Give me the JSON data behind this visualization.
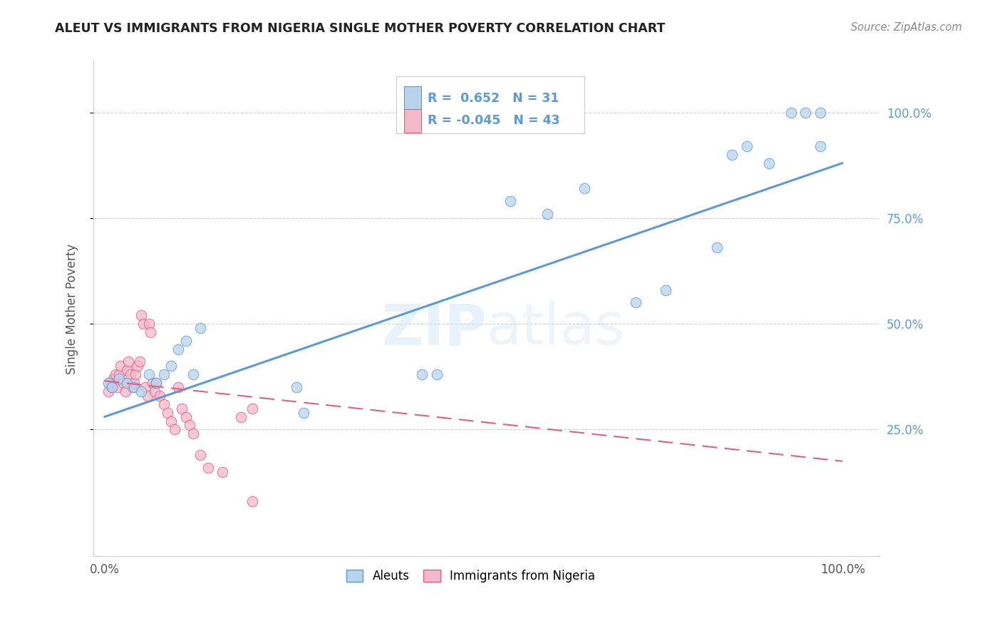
{
  "title": "ALEUT VS IMMIGRANTS FROM NIGERIA SINGLE MOTHER POVERTY CORRELATION CHART",
  "source": "Source: ZipAtlas.com",
  "ylabel": "Single Mother Poverty",
  "legend_label1": "Aleuts",
  "legend_label2": "Immigrants from Nigeria",
  "r1": 0.652,
  "n1": 31,
  "r2": -0.045,
  "n2": 43,
  "color_blue_fill": "#b8d4ed",
  "color_pink_fill": "#f5b8ca",
  "color_blue_edge": "#5b9bd5",
  "color_pink_edge": "#e06080",
  "color_blue_line": "#5b9bd5",
  "color_pink_line": "#e06080",
  "watermark": "ZIPatlas",
  "aleuts_x": [
    0.005,
    0.01,
    0.02,
    0.03,
    0.04,
    0.05,
    0.06,
    0.07,
    0.08,
    0.09,
    0.1,
    0.11,
    0.12,
    0.13,
    0.27,
    0.45,
    0.55,
    0.65,
    0.72,
    0.76,
    0.83,
    0.85,
    0.87,
    0.9,
    0.93,
    0.95,
    0.97,
    0.97,
    0.26,
    0.43,
    0.6
  ],
  "aleuts_y": [
    0.36,
    0.35,
    0.37,
    0.36,
    0.35,
    0.34,
    0.38,
    0.36,
    0.38,
    0.4,
    0.44,
    0.46,
    0.38,
    0.49,
    0.29,
    0.38,
    0.79,
    0.82,
    0.55,
    0.58,
    0.68,
    0.9,
    0.92,
    0.88,
    1.0,
    1.0,
    0.92,
    1.0,
    0.35,
    0.38,
    0.76
  ],
  "nigeria_x": [
    0.005,
    0.008,
    0.01,
    0.012,
    0.015,
    0.018,
    0.02,
    0.022,
    0.025,
    0.028,
    0.03,
    0.032,
    0.035,
    0.038,
    0.04,
    0.042,
    0.045,
    0.048,
    0.05,
    0.052,
    0.055,
    0.058,
    0.06,
    0.062,
    0.065,
    0.068,
    0.07,
    0.075,
    0.08,
    0.085,
    0.09,
    0.095,
    0.1,
    0.105,
    0.11,
    0.115,
    0.12,
    0.13,
    0.14,
    0.16,
    0.185,
    0.2,
    0.2
  ],
  "nigeria_y": [
    0.34,
    0.36,
    0.35,
    0.37,
    0.38,
    0.35,
    0.38,
    0.4,
    0.36,
    0.34,
    0.39,
    0.41,
    0.38,
    0.35,
    0.36,
    0.38,
    0.4,
    0.41,
    0.52,
    0.5,
    0.35,
    0.33,
    0.5,
    0.48,
    0.36,
    0.34,
    0.36,
    0.33,
    0.31,
    0.29,
    0.27,
    0.25,
    0.35,
    0.3,
    0.28,
    0.26,
    0.24,
    0.19,
    0.16,
    0.15,
    0.28,
    0.3,
    0.08
  ],
  "blue_line_x": [
    0.0,
    1.0
  ],
  "blue_line_y": [
    0.28,
    0.88
  ],
  "pink_line_x": [
    0.0,
    1.0
  ],
  "pink_line_y": [
    0.365,
    0.175
  ],
  "ytick_vals": [
    0.25,
    0.5,
    0.75,
    1.0
  ],
  "ytick_labels": [
    "25.0%",
    "50.0%",
    "75.0%",
    "100.0%"
  ],
  "background_color": "#ffffff",
  "grid_color": "#cccccc",
  "xlim": [
    -0.015,
    1.05
  ],
  "ylim": [
    -0.05,
    1.12
  ]
}
